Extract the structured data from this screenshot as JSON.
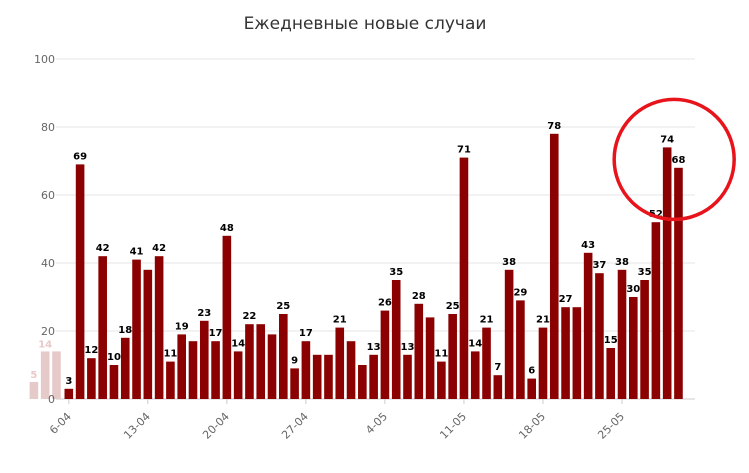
{
  "chart_data": {
    "type": "bar",
    "title": "Ежедневные новые случаи",
    "xlabel": "",
    "ylabel": "",
    "ylim": [
      0,
      100
    ],
    "yticks": [
      0,
      20,
      40,
      60,
      80,
      100
    ],
    "grid": true,
    "legend": "none",
    "colors": {
      "bar": "#8b0000",
      "ghost_bar": "#e6caca",
      "highlight_ring": "#e8141c",
      "grid": "#e6e6e6",
      "axis": "#cccccc"
    },
    "x_tick_labels": [
      {
        "index": 0,
        "label": "6-04"
      },
      {
        "index": 7,
        "label": "13-04"
      },
      {
        "index": 14,
        "label": "20-04"
      },
      {
        "index": 21,
        "label": "27-04"
      },
      {
        "index": 28,
        "label": "4-05"
      },
      {
        "index": 35,
        "label": "11-05"
      },
      {
        "index": 42,
        "label": "18-05"
      },
      {
        "index": 49,
        "label": "25-05"
      }
    ],
    "values": [
      3,
      69,
      12,
      42,
      10,
      18,
      41,
      38,
      42,
      11,
      19,
      17,
      23,
      17,
      48,
      14,
      22,
      22,
      19,
      25,
      9,
      17,
      13,
      13,
      21,
      17,
      10,
      13,
      26,
      35,
      13,
      28,
      24,
      11,
      25,
      71,
      14,
      21,
      7,
      38,
      29,
      6,
      21,
      78,
      27,
      27,
      43,
      37,
      15,
      38,
      30,
      35,
      52,
      74,
      68
    ],
    "labels": [
      "3",
      "69",
      "12",
      "42",
      "10",
      "18",
      "41",
      "",
      "42",
      "11",
      "19",
      "",
      "23",
      "17",
      "48",
      "14",
      "22",
      "",
      "",
      "25",
      "9",
      "17",
      "",
      "",
      "21",
      "",
      "",
      "13",
      "26",
      "35",
      "13",
      "28",
      "",
      "11",
      "25",
      "71",
      "14",
      "21",
      "7",
      "38",
      "29",
      "6",
      "21",
      "78",
      "27",
      "",
      "43",
      "37",
      "15",
      "38",
      "30",
      "35",
      "52",
      "74",
      "68"
    ],
    "ghost_values": [
      5,
      14,
      14
    ],
    "ghost_labels": [
      "5",
      "14",
      ""
    ],
    "highlight": {
      "from_index": 52,
      "to_index": 54
    }
  }
}
